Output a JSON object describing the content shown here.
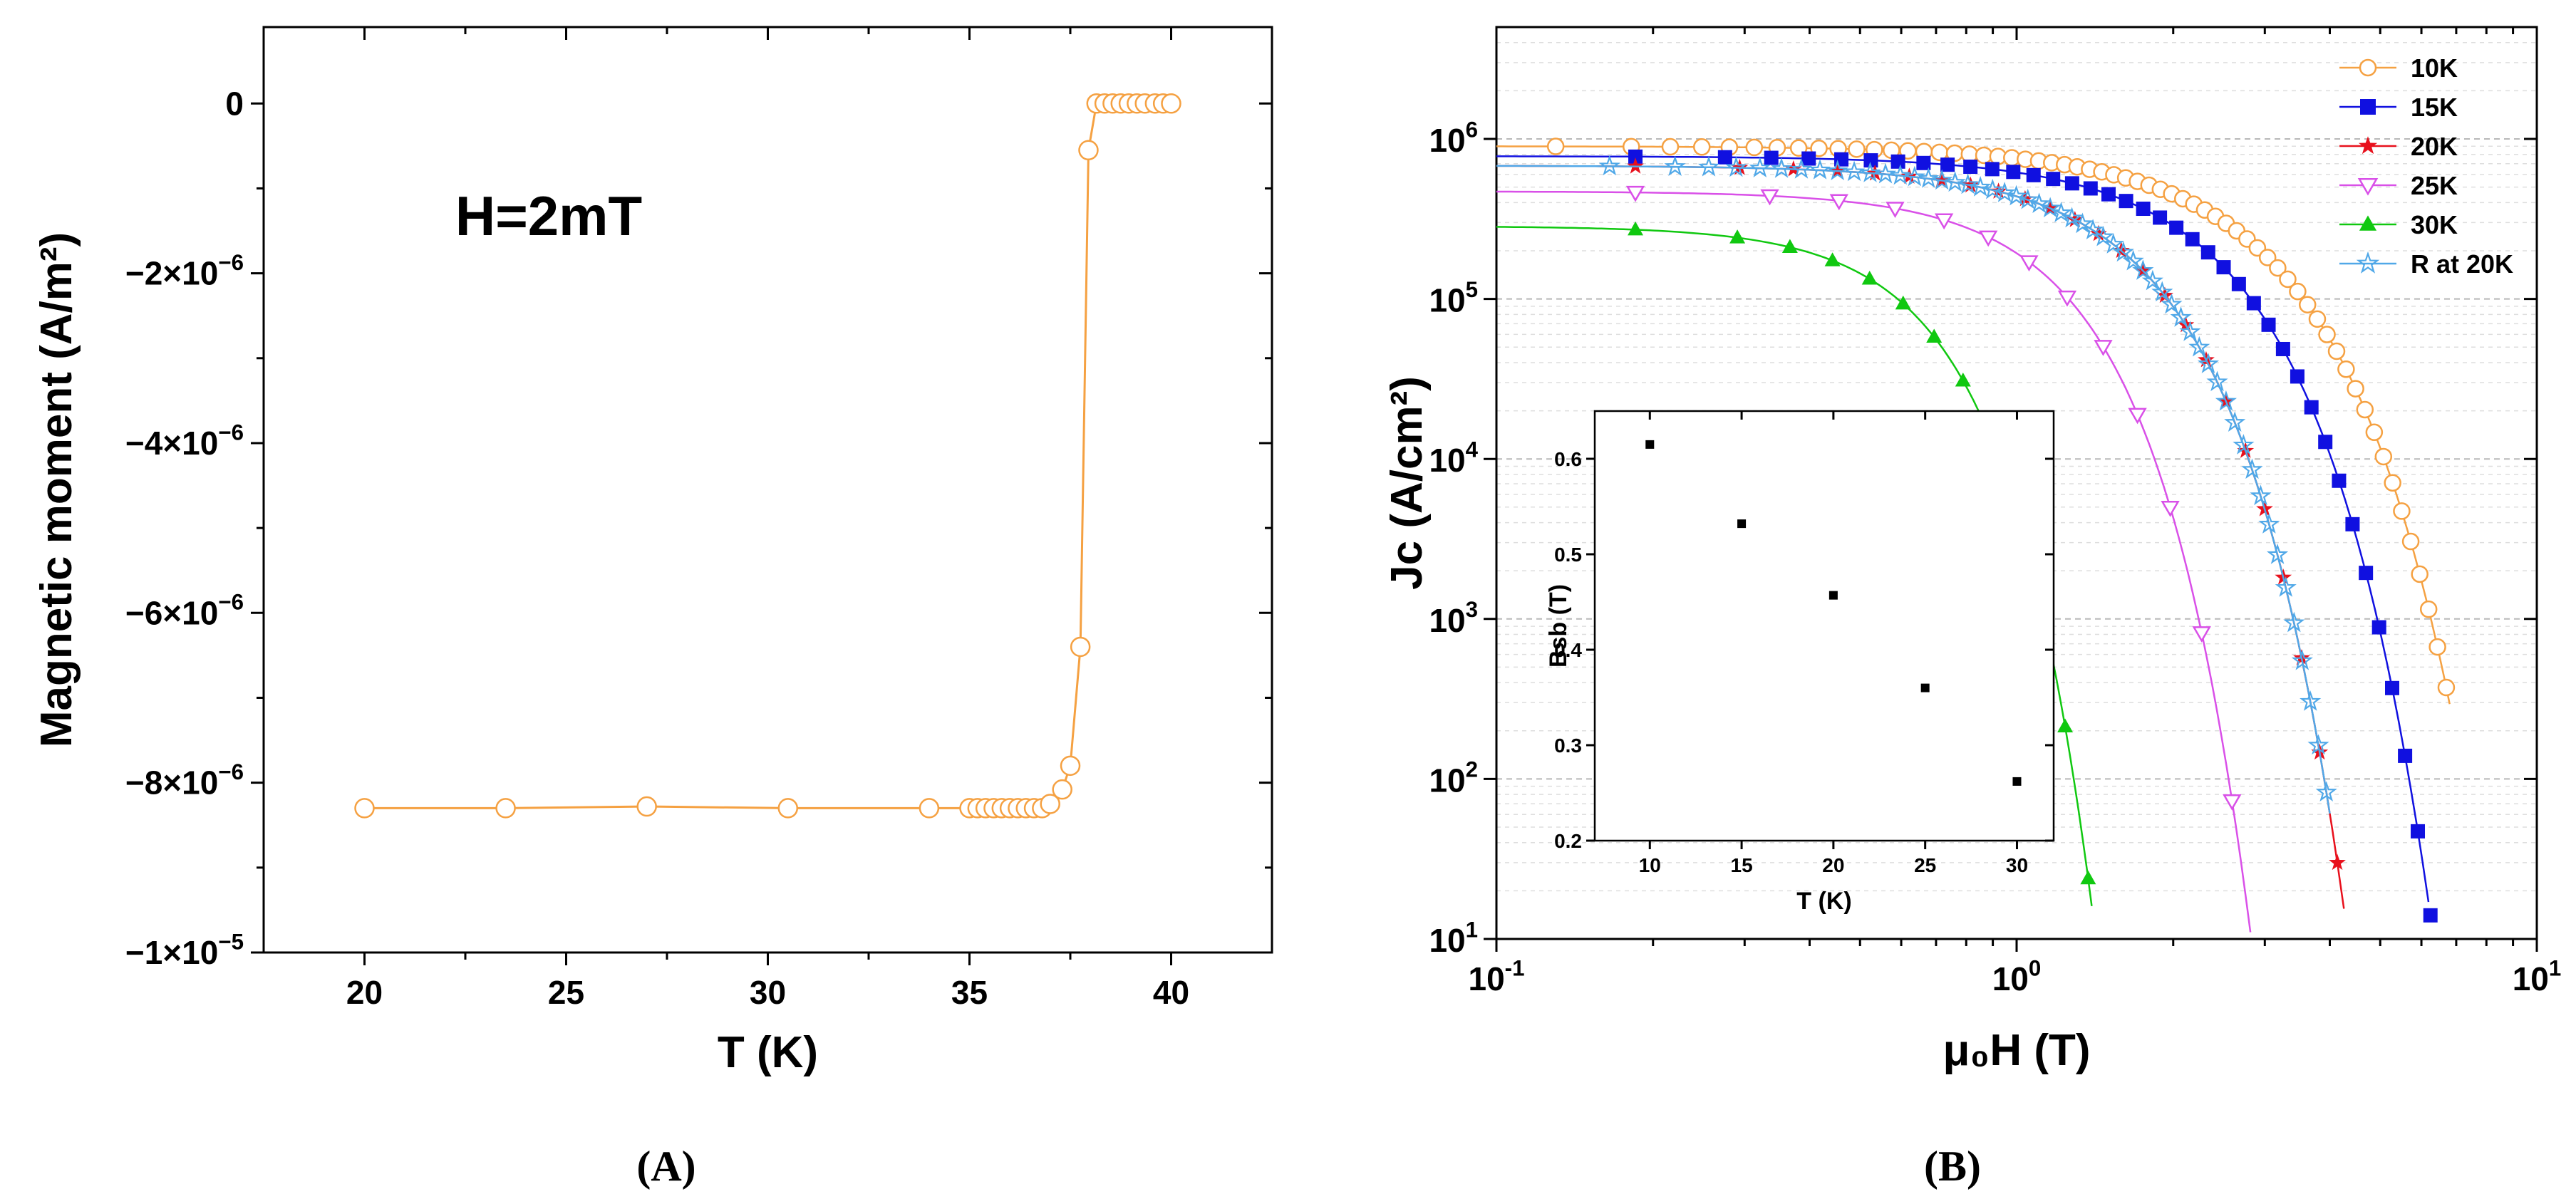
{
  "chart_data": [
    {
      "type": "line",
      "panel_label": "A",
      "annotation": "H=2mT",
      "xlabel": "T (K)",
      "ylabel": "Magnetic moment (A/m²)",
      "xlim": [
        17.5,
        42.5
      ],
      "ylim": [
        -1e-05,
        9e-07
      ],
      "x_ticks": [
        "20",
        "25",
        "30",
        "35",
        "40"
      ],
      "x_tick_values": [
        20,
        25,
        30,
        35,
        40
      ],
      "y_ticks": [
        {
          "value": 0,
          "label": "0"
        },
        {
          "value": -2e-06,
          "label": "−2×10",
          "exp": "−6"
        },
        {
          "value": -4e-06,
          "label": "−4×10",
          "exp": "−6"
        },
        {
          "value": -6e-06,
          "label": "−6×10",
          "exp": "−6"
        },
        {
          "value": -8e-06,
          "label": "−8×10",
          "exp": "−6"
        },
        {
          "value": -1e-05,
          "label": "−1×10",
          "exp": "−5"
        }
      ],
      "color": "#f5a142",
      "series": [
        {
          "name": "H=2mT",
          "x": [
            20,
            23.5,
            27,
            30.5,
            34,
            35,
            35.2,
            35.4,
            35.6,
            35.8,
            36,
            36.2,
            36.4,
            36.6,
            36.8,
            37,
            37.3,
            37.5,
            37.75,
            37.95,
            38.15,
            38.35,
            38.55,
            38.75,
            38.95,
            39.15,
            39.35,
            39.6,
            39.8,
            40
          ],
          "y": [
            -8.3e-06,
            -8.3e-06,
            -8.28e-06,
            -8.3e-06,
            -8.3e-06,
            -8.3e-06,
            -8.3e-06,
            -8.3e-06,
            -8.3e-06,
            -8.3e-06,
            -8.3e-06,
            -8.3e-06,
            -8.3e-06,
            -8.3e-06,
            -8.3e-06,
            -8.25e-06,
            -8.08e-06,
            -7.8e-06,
            -6.4e-06,
            -5.5e-07,
            0,
            0,
            0,
            0,
            0,
            0,
            0,
            0,
            0,
            0
          ]
        }
      ]
    },
    {
      "type": "line",
      "panel_label": "B",
      "xscale": "log",
      "yscale": "log",
      "xlabel": "μ₀H (T)",
      "ylabel": "Jc (A/cm²)",
      "xlim": [
        0.1,
        10
      ],
      "ylim": [
        10,
        5000000
      ],
      "x_ticks": [
        {
          "base": "10",
          "exp": "-1",
          "value": 0.1
        },
        {
          "base": "10",
          "exp": "0",
          "value": 1
        },
        {
          "base": "10",
          "exp": "1",
          "value": 10
        }
      ],
      "y_ticks": [
        {
          "base": "10",
          "exp": "1",
          "value": 10
        },
        {
          "base": "10",
          "exp": "2",
          "value": 100
        },
        {
          "base": "10",
          "exp": "3",
          "value": 1000
        },
        {
          "base": "10",
          "exp": "4",
          "value": 10000
        },
        {
          "base": "10",
          "exp": "5",
          "value": 100000
        },
        {
          "base": "10",
          "exp": "6",
          "value": 1000000
        }
      ],
      "legend_position": "top-right",
      "series": [
        {
          "name": "10K",
          "color": "#f5a142",
          "marker": "circle-open",
          "jc0": 900000,
          "hc": 2.4,
          "n": 2.0,
          "xmin": 0.1,
          "xmax": 6.8,
          "count": 62
        },
        {
          "name": "15K",
          "color": "#1010e0",
          "marker": "square",
          "jc0": 780000,
          "hc": 2.0,
          "n": 2.1,
          "xmin": 0.1,
          "xmax": 6.7,
          "count": 40
        },
        {
          "name": "20K",
          "color": "#e8101c",
          "marker": "star",
          "jc0": 680000,
          "hc": 1.45,
          "n": 2.2,
          "xmin": 0.1,
          "xmax": 6.1,
          "count": 30
        },
        {
          "name": "25K",
          "color": "#d950e8",
          "marker": "triangle-down-open",
          "jc0": 470000,
          "hc": 1.05,
          "n": 2.4,
          "xmin": 0.1,
          "xmax": 3.0,
          "count": 14
        },
        {
          "name": "30K",
          "color": "#10c810",
          "marker": "triangle-up",
          "jc0": 285000,
          "hc": 0.58,
          "n": 2.6,
          "xmin": 0.1,
          "xmax": 2.22,
          "count": 18
        },
        {
          "name": "R at 20K",
          "color": "#50a8e8",
          "marker": "star-open",
          "jc0": 680000,
          "hc": 1.45,
          "n": 2.2,
          "xmin": 0.1,
          "xmax": 4.0,
          "count": 55
        }
      ],
      "inset": {
        "type": "scatter",
        "xlabel": "T (K)",
        "ylabel": "Bsb (T)",
        "xlim": [
          7,
          32
        ],
        "ylim": [
          0.2,
          0.65
        ],
        "x_ticks": [
          "10",
          "15",
          "20",
          "25",
          "30"
        ],
        "x_tick_values": [
          10,
          15,
          20,
          25,
          30
        ],
        "y_ticks": [
          "0.2",
          "0.3",
          "0.4",
          "0.5",
          "0.6"
        ],
        "y_tick_values": [
          0.2,
          0.3,
          0.4,
          0.5,
          0.6
        ],
        "x": [
          10,
          15,
          20,
          25,
          30
        ],
        "y": [
          0.615,
          0.532,
          0.457,
          0.36,
          0.262
        ]
      }
    }
  ]
}
